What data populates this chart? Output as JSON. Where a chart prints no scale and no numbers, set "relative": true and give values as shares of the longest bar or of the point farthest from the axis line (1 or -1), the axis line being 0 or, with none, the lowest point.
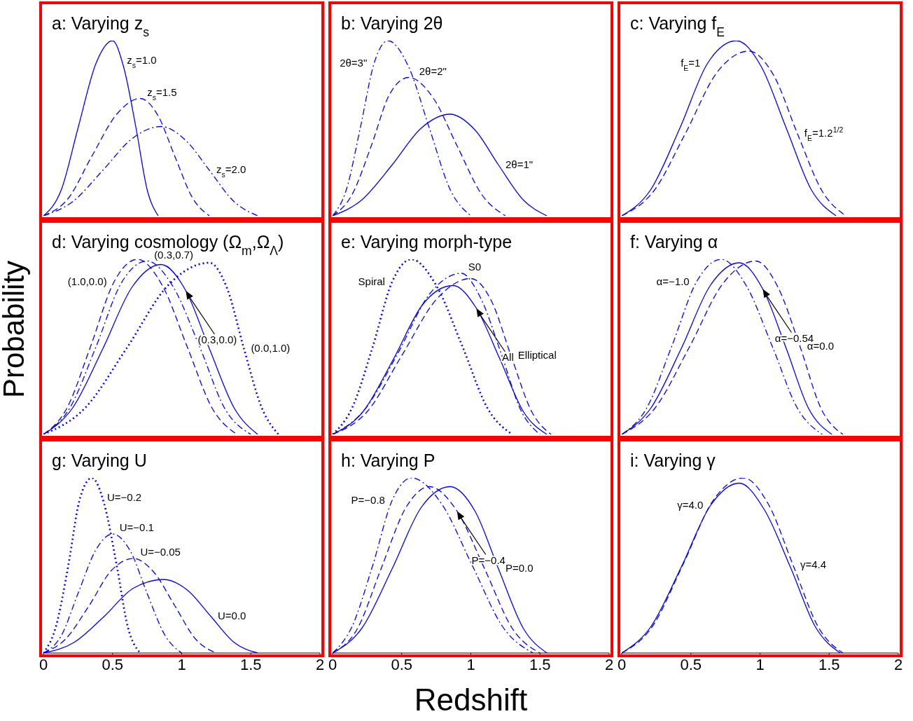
{
  "chart_data": [
    {
      "type": "line",
      "title": "a: Varying z$_{s}$",
      "xlim": [
        0,
        2
      ],
      "xticks": [
        0,
        0.5,
        1,
        1.5,
        2
      ],
      "relative": true,
      "tick_labels": false,
      "series": [
        {
          "name": "z$_{s}$=1.0",
          "color": "#0000ff",
          "line_style": "solid",
          "x": [
            0,
            0.13,
            0.25,
            0.38,
            0.5,
            0.58,
            0.67,
            0.75,
            0.83
          ],
          "values": [
            0,
            0.15,
            0.5,
            0.87,
            1,
            0.85,
            0.5,
            0.15,
            0
          ]
        },
        {
          "name": "z$_{s}$=1.5",
          "color": "#0000ff",
          "line_style": "dashed",
          "x": [
            0,
            0.18,
            0.35,
            0.53,
            0.7,
            0.83,
            0.95,
            1.08,
            1.2
          ],
          "values": [
            0,
            0.1,
            0.34,
            0.58,
            0.67,
            0.57,
            0.34,
            0.1,
            0
          ]
        },
        {
          "name": "z$_{s}$=2.0",
          "color": "#0000ff",
          "line_style": "dashdot",
          "x": [
            0,
            0.21,
            0.43,
            0.64,
            0.85,
            1.03,
            1.2,
            1.38,
            1.55
          ],
          "values": [
            0,
            0.08,
            0.26,
            0.44,
            0.51,
            0.43,
            0.26,
            0.08,
            0
          ]
        }
      ]
    },
    {
      "type": "line",
      "title": "b: Varying 2θ",
      "xlim": [
        0,
        2
      ],
      "xticks": [
        0,
        0.5,
        1,
        1.5,
        2
      ],
      "relative": true,
      "tick_labels": false,
      "series": [
        {
          "name": "2θ=3\"",
          "color": "#0000ff",
          "line_style": "dashdot",
          "x": [
            0,
            0.1,
            0.2,
            0.3,
            0.4,
            0.55,
            0.7,
            0.85,
            1.0
          ],
          "values": [
            0,
            0.15,
            0.5,
            0.87,
            1,
            0.85,
            0.5,
            0.15,
            0
          ]
        },
        {
          "name": "2θ=2\"",
          "color": "#0000ff",
          "line_style": "dashed",
          "x": [
            0,
            0.14,
            0.28,
            0.41,
            0.55,
            0.73,
            0.9,
            1.08,
            1.25
          ],
          "values": [
            0,
            0.12,
            0.4,
            0.69,
            0.79,
            0.67,
            0.4,
            0.12,
            0
          ]
        },
        {
          "name": "2θ=1\"",
          "color": "#0000ff",
          "line_style": "solid",
          "x": [
            0,
            0.21,
            0.43,
            0.64,
            0.85,
            1.03,
            1.2,
            1.38,
            1.55
          ],
          "values": [
            0,
            0.09,
            0.29,
            0.5,
            0.58,
            0.49,
            0.29,
            0.09,
            0
          ]
        }
      ]
    },
    {
      "type": "line",
      "title": "c: Varying f$_{E}$",
      "xlim": [
        0,
        2
      ],
      "xticks": [
        0,
        0.5,
        1,
        1.5,
        2
      ],
      "relative": true,
      "tick_labels": false,
      "series": [
        {
          "name": "f$_{E}$=1",
          "color": "#0000ff",
          "line_style": "solid",
          "x": [
            0,
            0.21,
            0.42,
            0.62,
            0.83,
            1.01,
            1.19,
            1.37,
            1.55
          ],
          "values": [
            0,
            0.15,
            0.5,
            0.87,
            1,
            0.85,
            0.5,
            0.15,
            0
          ]
        },
        {
          "name": "f$_{E}$=1.2$^{1/2}$",
          "color": "#0000ff",
          "line_style": "dashed",
          "x": [
            0,
            0.23,
            0.46,
            0.69,
            0.92,
            1.1,
            1.27,
            1.45,
            1.62
          ],
          "values": [
            0,
            0.14,
            0.47,
            0.82,
            0.94,
            0.8,
            0.47,
            0.14,
            0
          ]
        }
      ]
    },
    {
      "type": "line",
      "title": "d: Varying cosmology (Ω$_{m}$,Ω$_{Λ}$)",
      "ylabel": "Probability",
      "xlim": [
        0,
        2
      ],
      "xticks": [
        0,
        0.5,
        1,
        1.5,
        2
      ],
      "relative": true,
      "tick_labels": false,
      "annotations": [
        "(0.3,0.0)"
      ],
      "series": [
        {
          "name": "(1.0,0.0)",
          "color": "#0000ff",
          "line_style": "dashed",
          "x": [
            0,
            0.17,
            0.34,
            0.51,
            0.68,
            0.86,
            1.04,
            1.22,
            1.4
          ],
          "values": [
            0,
            0.15,
            0.5,
            0.87,
            1,
            0.85,
            0.5,
            0.15,
            0
          ]
        },
        {
          "name": "(0.3,0.7)",
          "color": "#0000ff",
          "line_style": "dashdot",
          "x": [
            0,
            0.19,
            0.38,
            0.56,
            0.75,
            0.94,
            1.13,
            1.31,
            1.5
          ],
          "values": [
            0,
            0.15,
            0.5,
            0.86,
            0.99,
            0.84,
            0.5,
            0.15,
            0
          ]
        },
        {
          "color": "#0000ff",
          "line_style": "solid",
          "x": [
            0,
            0.21,
            0.43,
            0.64,
            0.85,
            1.03,
            1.2,
            1.38,
            1.55
          ],
          "values": [
            0,
            0.15,
            0.49,
            0.84,
            0.97,
            0.82,
            0.49,
            0.15,
            0
          ]
        },
        {
          "name": "(0.0,1.0)",
          "color": "#0000ff",
          "line_style": "dotted",
          "x": [
            0,
            0.3,
            0.6,
            0.9,
            1.2,
            1.33,
            1.45,
            1.58,
            1.7
          ],
          "values": [
            0,
            0.15,
            0.49,
            0.85,
            0.98,
            0.83,
            0.49,
            0.15,
            0
          ]
        }
      ]
    },
    {
      "type": "line",
      "title": "e: Varying morph-type",
      "xlim": [
        0,
        2
      ],
      "xticks": [
        0,
        0.5,
        1,
        1.5,
        2
      ],
      "relative": true,
      "tick_labels": false,
      "annotations": [
        "All"
      ],
      "series": [
        {
          "name": "Spiral",
          "color": "#0000ff",
          "line_style": "dotted",
          "x": [
            0,
            0.14,
            0.29,
            0.43,
            0.57,
            0.75,
            0.94,
            1.12,
            1.3
          ],
          "values": [
            0,
            0.15,
            0.5,
            0.87,
            1,
            0.85,
            0.5,
            0.15,
            0
          ]
        },
        {
          "name": "S0",
          "color": "#0000ff",
          "line_style": "dashdot",
          "x": [
            0,
            0.23,
            0.47,
            0.7,
            0.93,
            1.07,
            1.22,
            1.36,
            1.5
          ],
          "values": [
            0,
            0.14,
            0.46,
            0.8,
            0.92,
            0.78,
            0.46,
            0.14,
            0
          ]
        },
        {
          "name": "Elliptical",
          "color": "#0000ff",
          "line_style": "dashed",
          "x": [
            0,
            0.25,
            0.5,
            0.75,
            1.0,
            1.15,
            1.29,
            1.44,
            1.58
          ],
          "values": [
            0,
            0.13,
            0.45,
            0.77,
            0.89,
            0.76,
            0.45,
            0.13,
            0
          ]
        },
        {
          "color": "#0000ff",
          "line_style": "solid",
          "x": [
            0,
            0.22,
            0.44,
            0.65,
            0.87,
            1.04,
            1.21,
            1.38,
            1.55
          ],
          "values": [
            0,
            0.13,
            0.43,
            0.74,
            0.85,
            0.72,
            0.43,
            0.13,
            0
          ]
        }
      ]
    },
    {
      "type": "line",
      "title": "f: Varying α",
      "xlim": [
        0,
        2
      ],
      "xticks": [
        0,
        0.5,
        1,
        1.5,
        2
      ],
      "relative": true,
      "tick_labels": false,
      "annotations": [
        "α=−0.54"
      ],
      "series": [
        {
          "name": "α=−1.0",
          "color": "#0000ff",
          "line_style": "dashdot",
          "x": [
            0,
            0.18,
            0.36,
            0.54,
            0.72,
            0.9,
            1.09,
            1.27,
            1.45
          ],
          "values": [
            0,
            0.15,
            0.5,
            0.87,
            1,
            0.85,
            0.5,
            0.15,
            0
          ]
        },
        {
          "color": "#0000ff",
          "line_style": "solid",
          "x": [
            0,
            0.21,
            0.43,
            0.64,
            0.85,
            1.02,
            1.19,
            1.35,
            1.52
          ],
          "values": [
            0,
            0.15,
            0.49,
            0.85,
            0.98,
            0.83,
            0.49,
            0.15,
            0
          ]
        },
        {
          "name": "α=0.0",
          "color": "#0000ff",
          "line_style": "dashed",
          "x": [
            0,
            0.24,
            0.49,
            0.73,
            0.97,
            1.13,
            1.29,
            1.44,
            1.6
          ],
          "values": [
            0,
            0.15,
            0.5,
            0.86,
            0.99,
            0.84,
            0.5,
            0.15,
            0
          ]
        }
      ]
    },
    {
      "type": "line",
      "title": "g: Varying U",
      "xlim": [
        0,
        2
      ],
      "xticks": [
        0,
        0.5,
        1,
        1.5,
        2
      ],
      "relative": true,
      "tick_labels": "x",
      "series": [
        {
          "name": "U=−0.2",
          "color": "#0000ff",
          "line_style": "dotted",
          "x": [
            0,
            0.09,
            0.18,
            0.26,
            0.35,
            0.44,
            0.53,
            0.61,
            0.7
          ],
          "values": [
            0,
            0.15,
            0.5,
            0.87,
            1,
            0.85,
            0.5,
            0.15,
            0
          ]
        },
        {
          "name": "U=−0.1",
          "color": "#0000ff",
          "line_style": "dashdot",
          "x": [
            0,
            0.13,
            0.25,
            0.38,
            0.5,
            0.63,
            0.75,
            0.88,
            1.0
          ],
          "values": [
            0,
            0.1,
            0.34,
            0.59,
            0.68,
            0.58,
            0.34,
            0.1,
            0
          ]
        },
        {
          "name": "U=−0.05",
          "color": "#0000ff",
          "line_style": "dashed",
          "x": [
            0,
            0.16,
            0.33,
            0.49,
            0.65,
            0.8,
            0.95,
            1.1,
            1.25
          ],
          "values": [
            0,
            0.08,
            0.27,
            0.47,
            0.54,
            0.46,
            0.27,
            0.08,
            0
          ]
        },
        {
          "name": "U=0.0",
          "color": "#0000ff",
          "line_style": "solid",
          "x": [
            0,
            0.22,
            0.44,
            0.65,
            0.87,
            1.04,
            1.21,
            1.38,
            1.55
          ],
          "values": [
            0,
            0.06,
            0.21,
            0.37,
            0.42,
            0.36,
            0.21,
            0.06,
            0
          ]
        }
      ]
    },
    {
      "type": "line",
      "title": "h: Varying P",
      "xlabel": "Redshift",
      "xlim": [
        0,
        2
      ],
      "xticks": [
        0,
        0.5,
        1,
        1.5,
        2
      ],
      "relative": true,
      "tick_labels": "x",
      "annotations": [
        "P=−0.4"
      ],
      "series": [
        {
          "name": "P=−0.8",
          "color": "#0000ff",
          "line_style": "dashdot",
          "x": [
            0,
            0.14,
            0.29,
            0.43,
            0.57,
            0.79,
            1.01,
            1.23,
            1.45
          ],
          "values": [
            0,
            0.15,
            0.5,
            0.87,
            1,
            0.85,
            0.5,
            0.15,
            0
          ]
        },
        {
          "color": "#0000ff",
          "line_style": "dashed",
          "x": [
            0,
            0.18,
            0.35,
            0.53,
            0.7,
            0.9,
            1.1,
            1.3,
            1.5
          ],
          "values": [
            0,
            0.14,
            0.48,
            0.83,
            0.95,
            0.81,
            0.48,
            0.14,
            0
          ]
        },
        {
          "name": "P=0.0",
          "color": "#0000ff",
          "line_style": "solid",
          "x": [
            0,
            0.21,
            0.43,
            0.64,
            0.85,
            1.03,
            1.2,
            1.38,
            1.55
          ],
          "values": [
            0,
            0.14,
            0.48,
            0.83,
            0.95,
            0.81,
            0.48,
            0.14,
            0
          ]
        }
      ]
    },
    {
      "type": "line",
      "title": "i: Varying γ",
      "xlim": [
        0,
        2
      ],
      "xticks": [
        0,
        0.5,
        1,
        1.5,
        2
      ],
      "relative": true,
      "tick_labels": "x",
      "series": [
        {
          "name": "γ=4.4",
          "color": "#0000ff",
          "line_style": "dashed",
          "x": [
            0,
            0.22,
            0.44,
            0.66,
            0.88,
            1.06,
            1.24,
            1.42,
            1.6
          ],
          "values": [
            0,
            0.15,
            0.5,
            0.87,
            1,
            0.85,
            0.5,
            0.15,
            0
          ]
        },
        {
          "name": "γ=4.0",
          "color": "#0000ff",
          "line_style": "solid",
          "x": [
            0,
            0.21,
            0.43,
            0.64,
            0.85,
            1.03,
            1.22,
            1.4,
            1.58
          ],
          "values": [
            0,
            0.15,
            0.49,
            0.84,
            0.97,
            0.82,
            0.49,
            0.15,
            0
          ]
        }
      ]
    }
  ]
}
